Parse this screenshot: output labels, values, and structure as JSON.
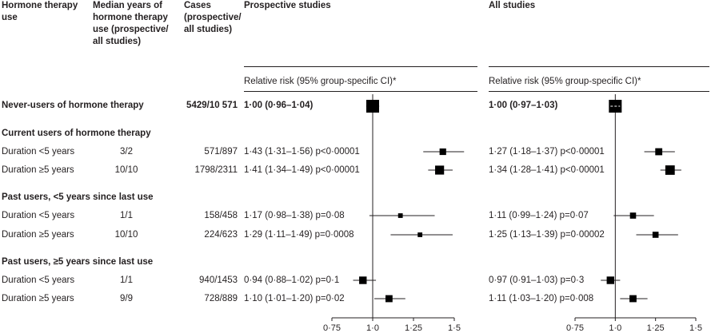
{
  "headers": {
    "col1": "Hormone therapy use",
    "col2": "Median years of hormone therapy use (prospective/ all studies)",
    "col3": "Cases (prospective/ all studies)",
    "prospective": "Prospective studies",
    "all": "All studies"
  },
  "rr_label": "Relative risk (95% group-specific CI)*",
  "rows": [
    {
      "kind": "data",
      "bold": true,
      "label": "Never-users of hormone therapy",
      "years": "",
      "cases": "5429/10 571",
      "p_text": "1·00 (0·96–1·04)",
      "a_text": "1·00 (0·97–1·03)"
    },
    {
      "kind": "section",
      "label": "Current users of hormone therapy"
    },
    {
      "kind": "data",
      "bold": false,
      "label": "Duration <5 years",
      "years": "3/2",
      "cases": "571/897",
      "p_text": "1·43 (1·31–1·56)  p<0·00001",
      "a_text": "1·27 (1·18–1·37)  p<0·00001"
    },
    {
      "kind": "data",
      "bold": false,
      "label": "Duration ≥5 years",
      "years": "10/10",
      "cases": "1798/2311",
      "p_text": "1·41 (1·34–1·49)  p<0·00001",
      "a_text": "1·34 (1·28–1·41)  p<0·00001"
    },
    {
      "kind": "section",
      "label": "Past users, <5 years since last use"
    },
    {
      "kind": "data",
      "bold": false,
      "label": "Duration <5 years",
      "years": "1/1",
      "cases": "158/458",
      "p_text": "1·17 (0·98–1·38)  p=0·08",
      "a_text": "1·11 (0·99–1·24)  p=0·07"
    },
    {
      "kind": "data",
      "bold": false,
      "label": "Duration ≥5 years",
      "years": "10/10",
      "cases": "224/623",
      "p_text": "1·29 (1·11–1·49)  p=0·0008",
      "a_text": "1·25 (1·13–1·39)  p=0·00002"
    },
    {
      "kind": "section",
      "label": "Past users, ≥5 years since last use"
    },
    {
      "kind": "data",
      "bold": false,
      "label": "Duration <5 years",
      "years": "1/1",
      "cases": "940/1453",
      "p_text": "0·94 (0·88–1·02)  p=0·1",
      "a_text": "0·97 (0·91–1·03)  p=0·3"
    },
    {
      "kind": "data",
      "bold": false,
      "label": "Duration ≥5 years",
      "years": "9/9",
      "cases": "728/889",
      "p_text": "1·10 (1·01–1·20)  p=0·02",
      "a_text": "1·11 (1·03–1·20)  p=0·008"
    }
  ],
  "chart_data": [
    {
      "type": "scatter",
      "name": "Prospective studies",
      "xticks": [
        0.75,
        1.0,
        1.25,
        1.5
      ],
      "xtick_labels": [
        "0·75",
        "1·0",
        "1·25",
        "1·5"
      ],
      "xlim": [
        0.75,
        1.5
      ],
      "reference_line": 1.0,
      "points": [
        {
          "row": 0,
          "rr": 1.0,
          "lo": 0.96,
          "hi": 1.04,
          "weight": 1.0
        },
        {
          "row": 2,
          "rr": 1.43,
          "lo": 1.31,
          "hi": 1.56,
          "weight": 0.35
        },
        {
          "row": 3,
          "rr": 1.41,
          "lo": 1.34,
          "hi": 1.49,
          "weight": 0.6
        },
        {
          "row": 5,
          "rr": 1.17,
          "lo": 0.98,
          "hi": 1.38,
          "weight": 0.15
        },
        {
          "row": 6,
          "rr": 1.29,
          "lo": 1.11,
          "hi": 1.49,
          "weight": 0.15
        },
        {
          "row": 8,
          "rr": 0.94,
          "lo": 0.88,
          "hi": 1.02,
          "weight": 0.45
        },
        {
          "row": 9,
          "rr": 1.1,
          "lo": 1.01,
          "hi": 1.2,
          "weight": 0.4
        }
      ]
    },
    {
      "type": "scatter",
      "name": "All studies",
      "xticks": [
        0.75,
        1.0,
        1.25,
        1.5
      ],
      "xtick_labels": [
        "0·75",
        "1·0",
        "1·25",
        "1·5"
      ],
      "xlim": [
        0.75,
        1.5
      ],
      "reference_line": 1.0,
      "points": [
        {
          "row": 0,
          "rr": 1.0,
          "lo": 0.97,
          "hi": 1.03,
          "weight": 1.0
        },
        {
          "row": 2,
          "rr": 1.27,
          "lo": 1.18,
          "hi": 1.37,
          "weight": 0.4
        },
        {
          "row": 3,
          "rr": 1.34,
          "lo": 1.28,
          "hi": 1.41,
          "weight": 0.65
        },
        {
          "row": 5,
          "rr": 1.11,
          "lo": 0.99,
          "hi": 1.24,
          "weight": 0.3
        },
        {
          "row": 6,
          "rr": 1.25,
          "lo": 1.13,
          "hi": 1.39,
          "weight": 0.3
        },
        {
          "row": 8,
          "rr": 0.97,
          "lo": 0.91,
          "hi": 1.03,
          "weight": 0.45
        },
        {
          "row": 9,
          "rr": 1.11,
          "lo": 1.03,
          "hi": 1.2,
          "weight": 0.4
        }
      ]
    }
  ]
}
